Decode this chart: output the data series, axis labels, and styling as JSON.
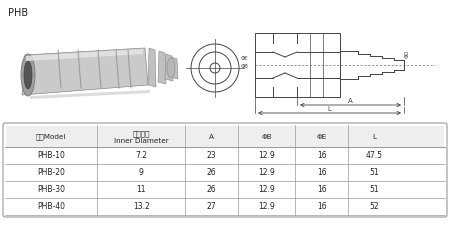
{
  "title": "PHB",
  "table_headers": [
    "型号Model",
    "插管内径\nInner Diameter",
    "A",
    "ΦB",
    "ΦE",
    "L"
  ],
  "table_rows": [
    [
      "PHB-10",
      "7.2",
      "23",
      "12.9",
      "16",
      "47.5"
    ],
    [
      "PHB-20",
      "9",
      "26",
      "12.9",
      "16",
      "51"
    ],
    [
      "PHB-30",
      "11",
      "26",
      "12.9",
      "16",
      "51"
    ],
    [
      "PHB-40",
      "13.2",
      "27",
      "12.9",
      "16",
      "52"
    ]
  ],
  "bg_color": "#ffffff",
  "table_border_color": "#999999",
  "table_header_bg": "#eeeeee",
  "text_color": "#222222",
  "dc": "#444444",
  "photo_main": "#d4d4d4",
  "photo_dark": "#909090",
  "photo_light": "#f0f0f0",
  "photo_darker": "#b0b0b0"
}
